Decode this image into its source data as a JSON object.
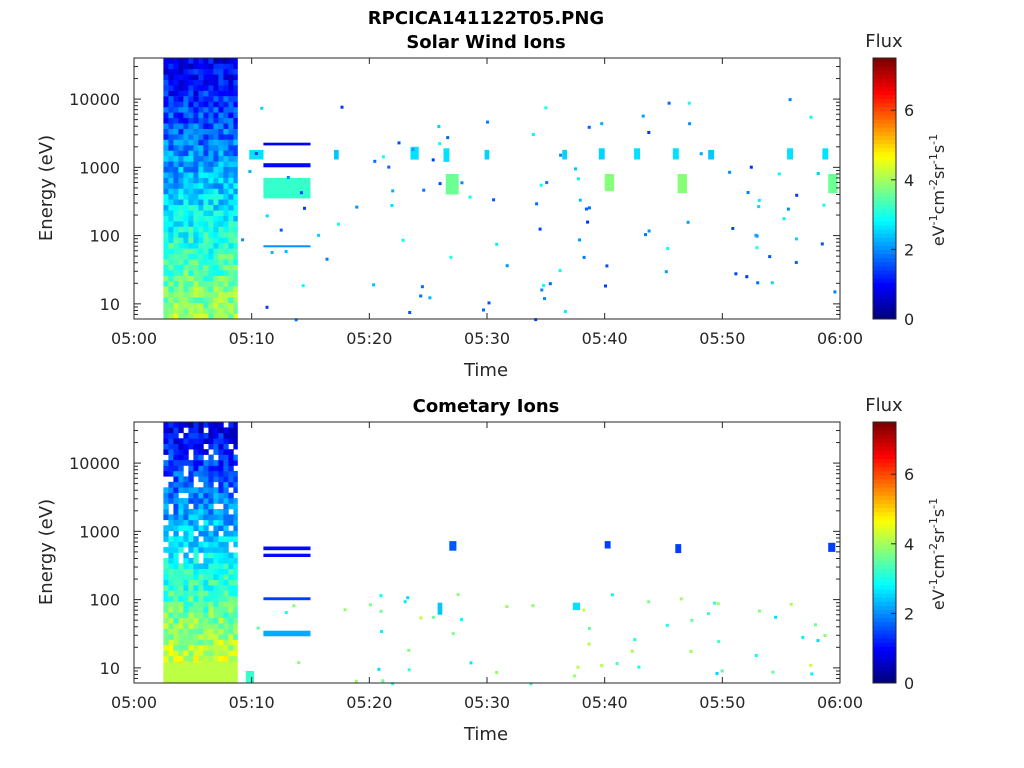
{
  "figure_title": "RPCICA141122T05.PNG",
  "chart_data": [
    {
      "type": "heatmap",
      "title": "Solar Wind Ions",
      "xlabel": "Time",
      "ylabel": "Energy (eV)",
      "x_ticks": [
        "05:00",
        "05:10",
        "05:20",
        "05:30",
        "05:40",
        "05:50",
        "06:00"
      ],
      "x_range": [
        "05:00",
        "06:00"
      ],
      "y_scale": "log",
      "y_ticks": [
        "10",
        "100",
        "1000",
        "10000"
      ],
      "y_range": [
        6,
        40000
      ],
      "grid": false,
      "colorbar": {
        "label": "Flux",
        "units_label": "eV-1cm-2sr-1s-1",
        "colormap": "jet",
        "range": [
          0,
          7.5
        ],
        "ticks": [
          "0",
          "2",
          "4",
          "6"
        ]
      },
      "features": [
        {
          "t0": 2.5,
          "t1": 8.8,
          "e0": 6,
          "e1": 40000,
          "value": 2.5,
          "kind": "dense"
        },
        {
          "t0": 11.0,
          "t1": 15.0,
          "e0": 350,
          "e1": 700,
          "value": 3.2
        },
        {
          "t0": 11.0,
          "t1": 15.0,
          "e0": 2100,
          "e1": 2300,
          "value": 0.8
        },
        {
          "t0": 11.0,
          "t1": 15.0,
          "e0": 1000,
          "e1": 1150,
          "value": 1.0
        },
        {
          "t0": 11.0,
          "t1": 15.0,
          "e0": 68,
          "e1": 72,
          "value": 2.0
        },
        {
          "t0": 9.8,
          "t1": 10.5,
          "e0": 1300,
          "e1": 1800,
          "value": 2.6
        },
        {
          "t0": 10.5,
          "t1": 11.0,
          "e0": 1300,
          "e1": 1800,
          "value": 2.6
        },
        {
          "t0": 17.0,
          "t1": 17.4,
          "e0": 1300,
          "e1": 1800,
          "value": 2.4
        },
        {
          "t0": 23.5,
          "t1": 24.2,
          "e0": 1300,
          "e1": 2000,
          "value": 2.6
        },
        {
          "t0": 26.5,
          "t1": 27.6,
          "e0": 400,
          "e1": 800,
          "value": 3.6
        },
        {
          "t0": 26.3,
          "t1": 26.8,
          "e0": 1200,
          "e1": 1900,
          "value": 2.6
        },
        {
          "t0": 29.8,
          "t1": 30.2,
          "e0": 1300,
          "e1": 1800,
          "value": 2.5
        },
        {
          "t0": 36.4,
          "t1": 36.8,
          "e0": 1300,
          "e1": 1800,
          "value": 2.5
        },
        {
          "t0": 39.5,
          "t1": 40.0,
          "e0": 1300,
          "e1": 1900,
          "value": 2.5
        },
        {
          "t0": 40.0,
          "t1": 40.8,
          "e0": 450,
          "e1": 800,
          "value": 3.8
        },
        {
          "t0": 42.5,
          "t1": 43.0,
          "e0": 1300,
          "e1": 1900,
          "value": 2.6
        },
        {
          "t0": 45.8,
          "t1": 46.3,
          "e0": 1300,
          "e1": 1900,
          "value": 2.6
        },
        {
          "t0": 46.2,
          "t1": 47.0,
          "e0": 420,
          "e1": 800,
          "value": 3.8
        },
        {
          "t0": 48.8,
          "t1": 49.3,
          "e0": 1300,
          "e1": 1800,
          "value": 2.4
        },
        {
          "t0": 55.5,
          "t1": 56.0,
          "e0": 1300,
          "e1": 1900,
          "value": 2.6
        },
        {
          "t0": 58.5,
          "t1": 59.0,
          "e0": 1300,
          "e1": 1900,
          "value": 2.6
        },
        {
          "t0": 59.0,
          "t1": 59.8,
          "e0": 420,
          "e1": 800,
          "value": 3.6
        }
      ]
    },
    {
      "type": "heatmap",
      "title": "Cometary Ions",
      "xlabel": "Time",
      "ylabel": "Energy (eV)",
      "x_ticks": [
        "05:00",
        "05:10",
        "05:20",
        "05:30",
        "05:40",
        "05:50",
        "06:00"
      ],
      "x_range": [
        "05:00",
        "06:00"
      ],
      "y_scale": "log",
      "y_ticks": [
        "10",
        "100",
        "1000",
        "10000"
      ],
      "y_range": [
        6,
        40000
      ],
      "grid": false,
      "colorbar": {
        "label": "Flux",
        "units_label": "eV-1cm-2sr-1s-1",
        "colormap": "jet",
        "range": [
          0,
          7.5
        ],
        "ticks": [
          "0",
          "2",
          "4",
          "6"
        ]
      },
      "features": [
        {
          "t0": 2.5,
          "t1": 8.8,
          "e0": 6,
          "e1": 40000,
          "value": 1.5,
          "kind": "dense"
        },
        {
          "t0": 11.0,
          "t1": 15.0,
          "e0": 530,
          "e1": 600,
          "value": 1.0
        },
        {
          "t0": 11.0,
          "t1": 15.0,
          "e0": 420,
          "e1": 470,
          "value": 1.0
        },
        {
          "t0": 11.0,
          "t1": 15.0,
          "e0": 98,
          "e1": 108,
          "value": 1.4
        },
        {
          "t0": 11.0,
          "t1": 15.0,
          "e0": 29,
          "e1": 35,
          "value": 2.2
        },
        {
          "t0": 26.8,
          "t1": 27.4,
          "e0": 520,
          "e1": 720,
          "value": 1.6
        },
        {
          "t0": 40.0,
          "t1": 40.5,
          "e0": 560,
          "e1": 720,
          "value": 1.4
        },
        {
          "t0": 46.0,
          "t1": 46.5,
          "e0": 480,
          "e1": 650,
          "value": 1.4
        },
        {
          "t0": 59.0,
          "t1": 59.6,
          "e0": 500,
          "e1": 680,
          "value": 1.4
        },
        {
          "t0": 37.3,
          "t1": 37.9,
          "e0": 70,
          "e1": 90,
          "value": 2.6
        },
        {
          "t0": 25.8,
          "t1": 26.2,
          "e0": 60,
          "e1": 90,
          "value": 2.4
        },
        {
          "t0": 2.5,
          "t1": 8.8,
          "e0": 6,
          "e1": 12,
          "value": 4.2
        },
        {
          "t0": 9.5,
          "t1": 10.2,
          "e0": 6,
          "e1": 9,
          "value": 3.2
        }
      ]
    }
  ]
}
